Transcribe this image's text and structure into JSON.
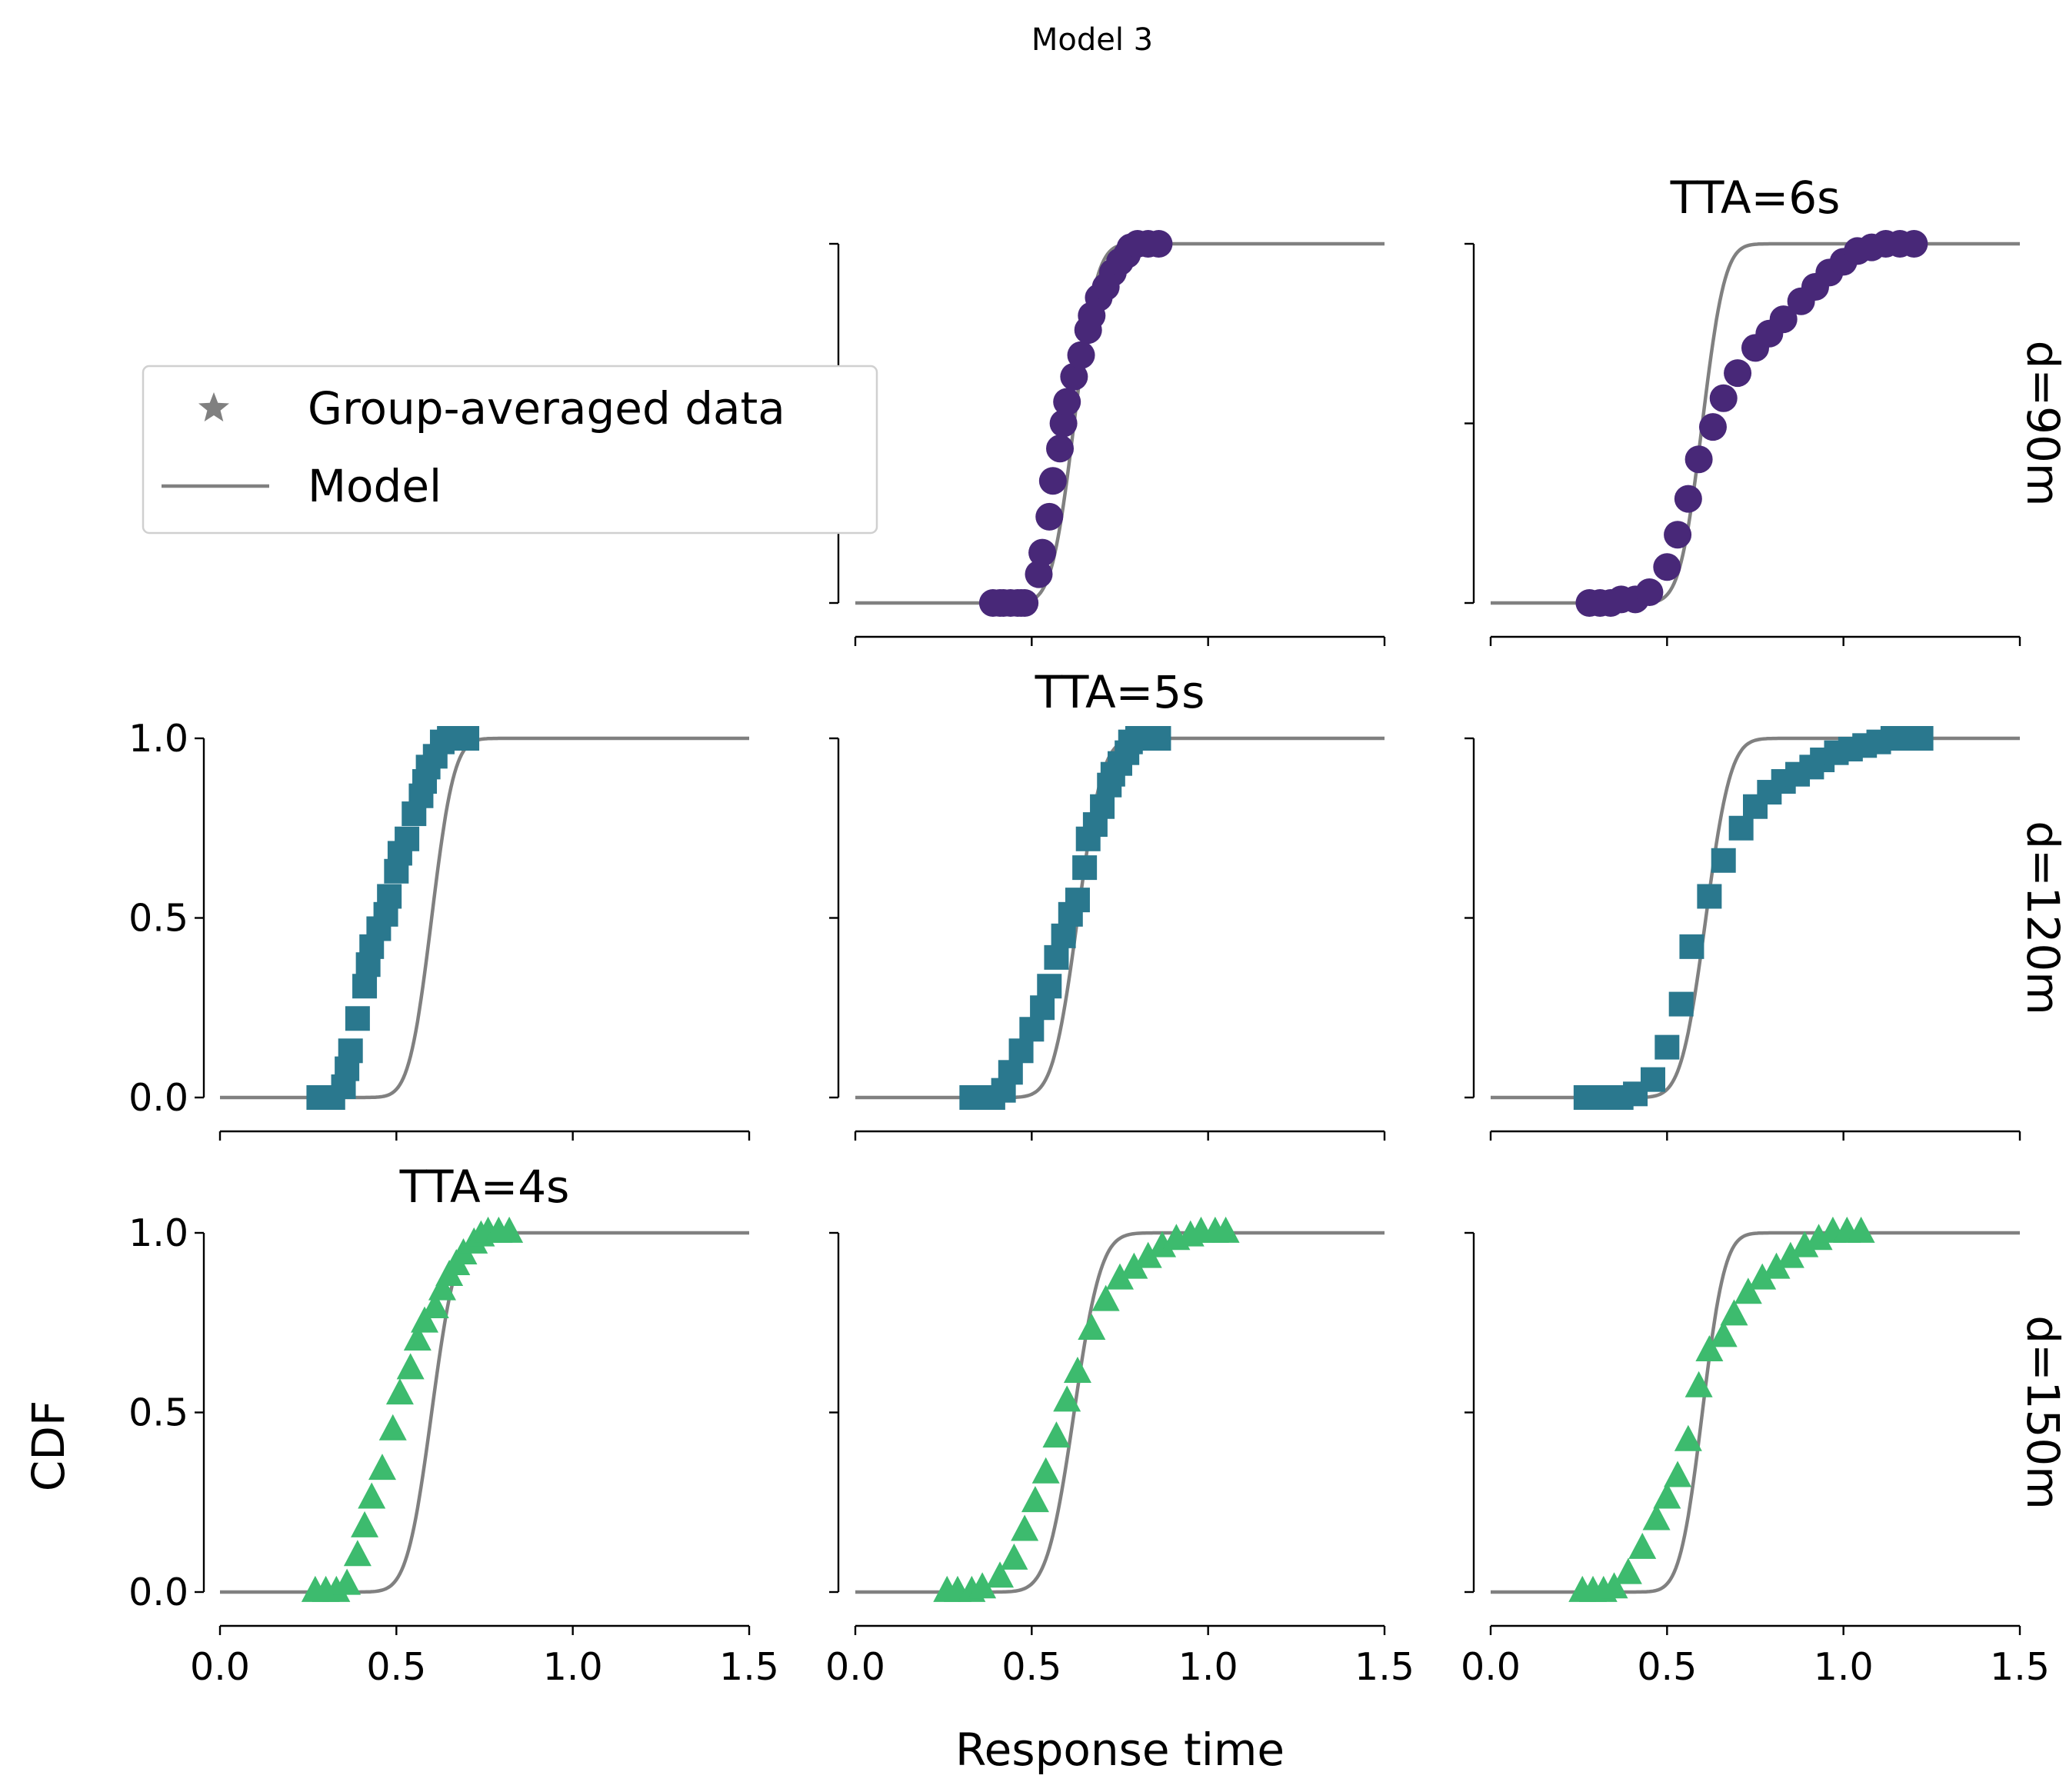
{
  "chart_data": {
    "type": "scatter",
    "title": "Model 3",
    "xlabel": "Response time",
    "ylabel": "CDF",
    "xlim": [
      0,
      1.5
    ],
    "ylim": [
      0,
      1
    ],
    "xticks": [
      "0.0",
      "0.5",
      "1.0",
      "1.5"
    ],
    "yticks": [
      "0.0",
      "0.5",
      "1.0"
    ],
    "legend": {
      "placement": "upper-left",
      "entries": [
        {
          "label": "Group-averaged data",
          "marker": "star",
          "color": "#808080"
        },
        {
          "label": "Model",
          "marker": "line",
          "color": "#808080"
        }
      ]
    },
    "row_labels": [
      "d=90m",
      "d=120m",
      "d=150m"
    ],
    "column_titles": [
      {
        "row": 2,
        "col": 0,
        "text": "TTA=4s"
      },
      {
        "row": 1,
        "col": 1,
        "text": "TTA=5s"
      },
      {
        "row": 0,
        "col": 2,
        "text": "TTA=6s"
      }
    ],
    "panels": [
      {
        "row": 0,
        "col": 1,
        "marker": "circle",
        "color": "#482878",
        "data_x": [
          0.39,
          0.41,
          0.42,
          0.44,
          0.46,
          0.47,
          0.48,
          0.52,
          0.53,
          0.55,
          0.56,
          0.58,
          0.59,
          0.6,
          0.62,
          0.64,
          0.66,
          0.67,
          0.69,
          0.71,
          0.73,
          0.75,
          0.77,
          0.78,
          0.8,
          0.83,
          0.86
        ],
        "data_y": [
          0.0,
          0.0,
          0.0,
          0.0,
          0.0,
          0.0,
          0.0,
          0.08,
          0.14,
          0.24,
          0.34,
          0.43,
          0.5,
          0.56,
          0.63,
          0.69,
          0.76,
          0.8,
          0.85,
          0.88,
          0.92,
          0.95,
          0.97,
          0.99,
          1.0,
          1.0,
          1.0
        ],
        "model": {
          "mean": 0.62,
          "scale": 0.05
        }
      },
      {
        "row": 0,
        "col": 2,
        "marker": "circle",
        "color": "#482878",
        "data_x": [
          0.28,
          0.31,
          0.34,
          0.37,
          0.41,
          0.45,
          0.5,
          0.53,
          0.56,
          0.59,
          0.63,
          0.66,
          0.7,
          0.75,
          0.79,
          0.83,
          0.88,
          0.92,
          0.96,
          1.0,
          1.04,
          1.08,
          1.12,
          1.16,
          1.2
        ],
        "data_y": [
          0.0,
          0.0,
          0.0,
          0.01,
          0.01,
          0.03,
          0.1,
          0.19,
          0.29,
          0.4,
          0.49,
          0.57,
          0.64,
          0.71,
          0.75,
          0.79,
          0.84,
          0.88,
          0.92,
          0.95,
          0.98,
          0.99,
          1.0,
          1.0,
          1.0
        ],
        "model": {
          "mean": 0.6,
          "scale": 0.05
        }
      },
      {
        "row": 1,
        "col": 0,
        "marker": "square",
        "color": "#2a788e",
        "data_x": [
          0.28,
          0.3,
          0.32,
          0.35,
          0.36,
          0.37,
          0.39,
          0.41,
          0.42,
          0.43,
          0.45,
          0.47,
          0.48,
          0.5,
          0.51,
          0.53,
          0.55,
          0.57,
          0.58,
          0.59,
          0.61,
          0.63,
          0.65,
          0.67,
          0.7
        ],
        "data_y": [
          0.0,
          0.0,
          0.0,
          0.03,
          0.08,
          0.13,
          0.22,
          0.31,
          0.37,
          0.42,
          0.47,
          0.51,
          0.56,
          0.63,
          0.68,
          0.72,
          0.79,
          0.84,
          0.88,
          0.92,
          0.95,
          0.99,
          1.0,
          1.0,
          1.0
        ],
        "model": {
          "mean": 0.6,
          "scale": 0.05
        }
      },
      {
        "row": 1,
        "col": 1,
        "marker": "square",
        "color": "#2a788e",
        "data_x": [
          0.33,
          0.36,
          0.39,
          0.42,
          0.44,
          0.47,
          0.5,
          0.53,
          0.55,
          0.57,
          0.59,
          0.61,
          0.63,
          0.65,
          0.66,
          0.68,
          0.7,
          0.72,
          0.73,
          0.75,
          0.77,
          0.78,
          0.8,
          0.83,
          0.86
        ],
        "data_y": [
          0.0,
          0.0,
          0.0,
          0.02,
          0.07,
          0.13,
          0.19,
          0.25,
          0.31,
          0.39,
          0.45,
          0.51,
          0.55,
          0.64,
          0.72,
          0.76,
          0.81,
          0.87,
          0.9,
          0.93,
          0.96,
          0.99,
          1.0,
          1.0,
          1.0
        ],
        "model": {
          "mean": 0.63,
          "scale": 0.055
        }
      },
      {
        "row": 1,
        "col": 2,
        "marker": "square",
        "color": "#2a788e",
        "data_x": [
          0.27,
          0.31,
          0.34,
          0.37,
          0.41,
          0.46,
          0.5,
          0.54,
          0.57,
          0.62,
          0.66,
          0.71,
          0.75,
          0.79,
          0.83,
          0.87,
          0.91,
          0.94,
          0.98,
          1.02,
          1.06,
          1.1,
          1.14,
          1.18,
          1.22
        ],
        "data_y": [
          0.0,
          0.0,
          0.0,
          0.0,
          0.01,
          0.05,
          0.14,
          0.26,
          0.42,
          0.56,
          0.66,
          0.75,
          0.81,
          0.85,
          0.88,
          0.9,
          0.92,
          0.94,
          0.96,
          0.97,
          0.98,
          0.99,
          1.0,
          1.0,
          1.0
        ],
        "model": {
          "mean": 0.61,
          "scale": 0.055
        }
      },
      {
        "row": 2,
        "col": 0,
        "marker": "triangle",
        "color": "#3dbb6e",
        "data_x": [
          0.27,
          0.3,
          0.33,
          0.36,
          0.39,
          0.41,
          0.43,
          0.46,
          0.49,
          0.51,
          0.54,
          0.56,
          0.58,
          0.61,
          0.63,
          0.65,
          0.67,
          0.69,
          0.72,
          0.74,
          0.76,
          0.79,
          0.82
        ],
        "data_y": [
          0.0,
          0.0,
          0.0,
          0.02,
          0.1,
          0.18,
          0.26,
          0.34,
          0.45,
          0.55,
          0.62,
          0.7,
          0.75,
          0.79,
          0.84,
          0.88,
          0.91,
          0.94,
          0.97,
          0.99,
          1.0,
          1.0,
          1.0
        ],
        "model": {
          "mean": 0.6,
          "scale": 0.055
        }
      },
      {
        "row": 2,
        "col": 1,
        "marker": "triangle",
        "color": "#3dbb6e",
        "data_x": [
          0.26,
          0.29,
          0.33,
          0.36,
          0.41,
          0.45,
          0.48,
          0.51,
          0.54,
          0.57,
          0.6,
          0.63,
          0.67,
          0.71,
          0.75,
          0.79,
          0.83,
          0.87,
          0.91,
          0.95,
          0.98,
          1.02,
          1.05
        ],
        "data_y": [
          0.0,
          0.0,
          0.0,
          0.01,
          0.04,
          0.09,
          0.17,
          0.25,
          0.33,
          0.43,
          0.53,
          0.61,
          0.73,
          0.81,
          0.87,
          0.9,
          0.93,
          0.96,
          0.98,
          0.99,
          1.0,
          1.0,
          1.0
        ],
        "model": {
          "mean": 0.62,
          "scale": 0.06
        }
      },
      {
        "row": 2,
        "col": 2,
        "marker": "triangle",
        "color": "#3dbb6e",
        "data_x": [
          0.26,
          0.29,
          0.32,
          0.35,
          0.39,
          0.43,
          0.47,
          0.5,
          0.53,
          0.56,
          0.59,
          0.62,
          0.66,
          0.69,
          0.73,
          0.77,
          0.81,
          0.85,
          0.89,
          0.93,
          0.97,
          1.01,
          1.05
        ],
        "data_y": [
          0.0,
          0.0,
          0.0,
          0.01,
          0.05,
          0.12,
          0.2,
          0.26,
          0.32,
          0.42,
          0.57,
          0.67,
          0.71,
          0.77,
          0.83,
          0.87,
          0.9,
          0.93,
          0.96,
          0.98,
          1.0,
          1.0,
          1.0
        ],
        "model": {
          "mean": 0.6,
          "scale": 0.05
        }
      }
    ]
  }
}
